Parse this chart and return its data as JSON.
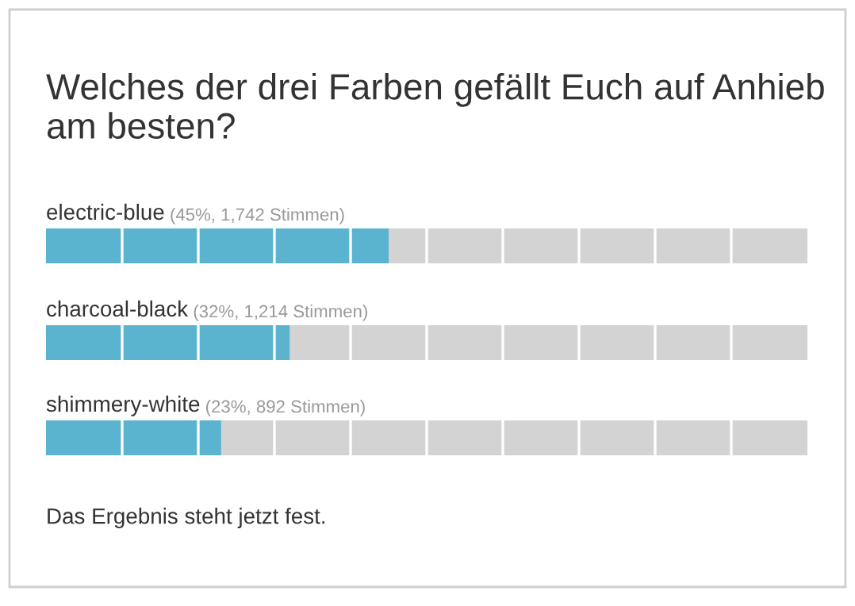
{
  "chart_data": {
    "type": "bar",
    "orientation": "horizontal",
    "title": "Welches der drei Farben gefällt Euch auf Anhieb am besten?",
    "categories": [
      "electric-blue",
      "charcoal-black",
      "shimmery-white"
    ],
    "values": [
      45,
      32,
      23
    ],
    "value_labels": [
      "(45%, 1,742 Stimmen)",
      "(32%, 1,214 Stimmen)",
      "(23%, 892 Stimmen)"
    ],
    "color": "#5ab4d0",
    "xlim": [
      0,
      100
    ],
    "annotations": [
      "Das Ergebnis steht jetzt fest."
    ]
  }
}
